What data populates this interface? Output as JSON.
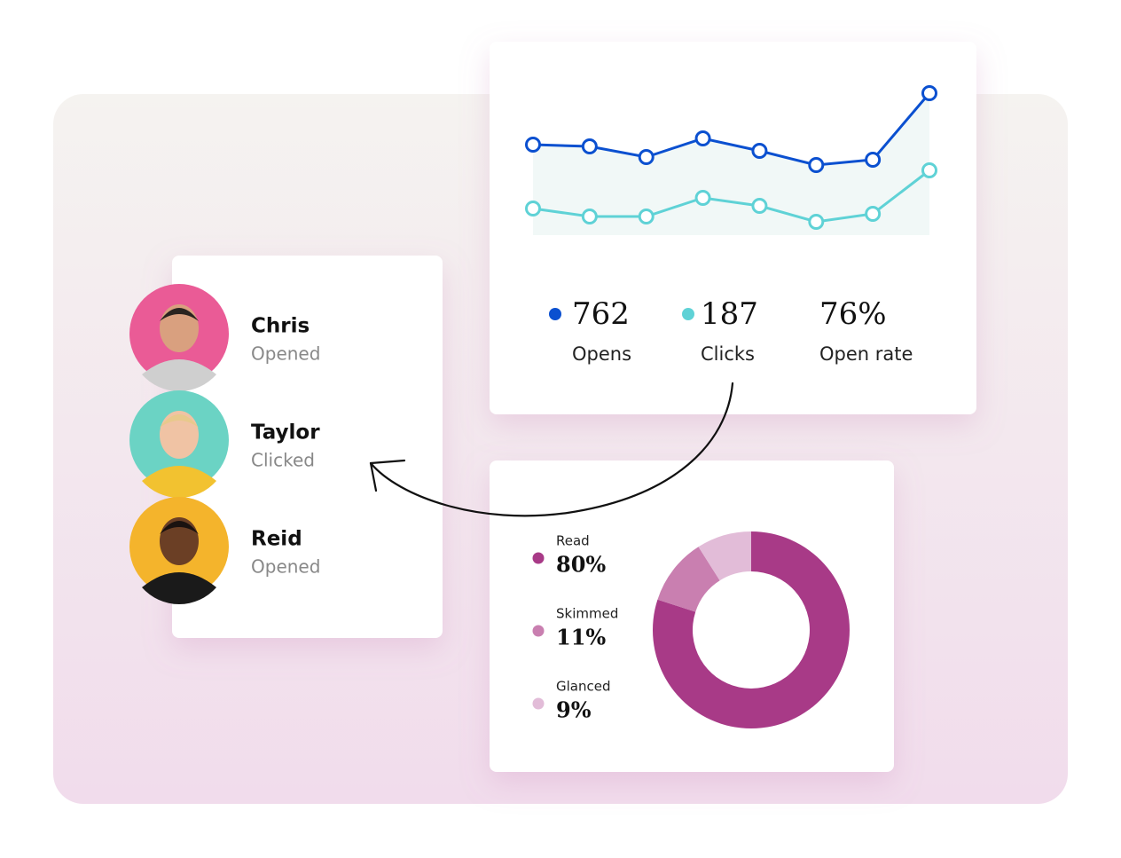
{
  "chart_data": [
    {
      "type": "line",
      "categories": [
        null,
        null,
        null,
        null,
        null,
        null,
        null,
        null
      ],
      "series": [
        {
          "color": "#0b50d0",
          "values": [
            102,
            100,
            88,
            109,
            95,
            79,
            85,
            160
          ]
        },
        {
          "color": "#5fd2d6",
          "values": [
            30,
            21,
            21,
            42,
            33,
            15,
            24,
            73
          ]
        }
      ],
      "ylim": [
        0,
        170
      ],
      "area_color": "#f1f8f7"
    },
    {
      "type": "pie",
      "categories": [
        "Read",
        "Skimmed",
        "Glanced"
      ],
      "values": [
        80,
        11,
        9
      ],
      "value_labels": [
        "80%",
        "11%",
        "9%"
      ],
      "colors": [
        "#a83a87",
        "#c97fb0",
        "#e2bcd8"
      ]
    }
  ],
  "stats": [
    {
      "value": "762",
      "label": "Opens",
      "color": "#0b50d0"
    },
    {
      "value": "187",
      "label": "Clicks",
      "color": "#5fd2d6"
    },
    {
      "value": "76%",
      "label": "Open rate"
    }
  ],
  "contacts": [
    {
      "name": "Chris",
      "status": "Opened",
      "color": "#ea5b96"
    },
    {
      "name": "Taylor",
      "status": "Clicked",
      "color": "#6bd3c4"
    },
    {
      "name": "Reid",
      "status": "Opened",
      "color": "#f4b42c"
    }
  ]
}
